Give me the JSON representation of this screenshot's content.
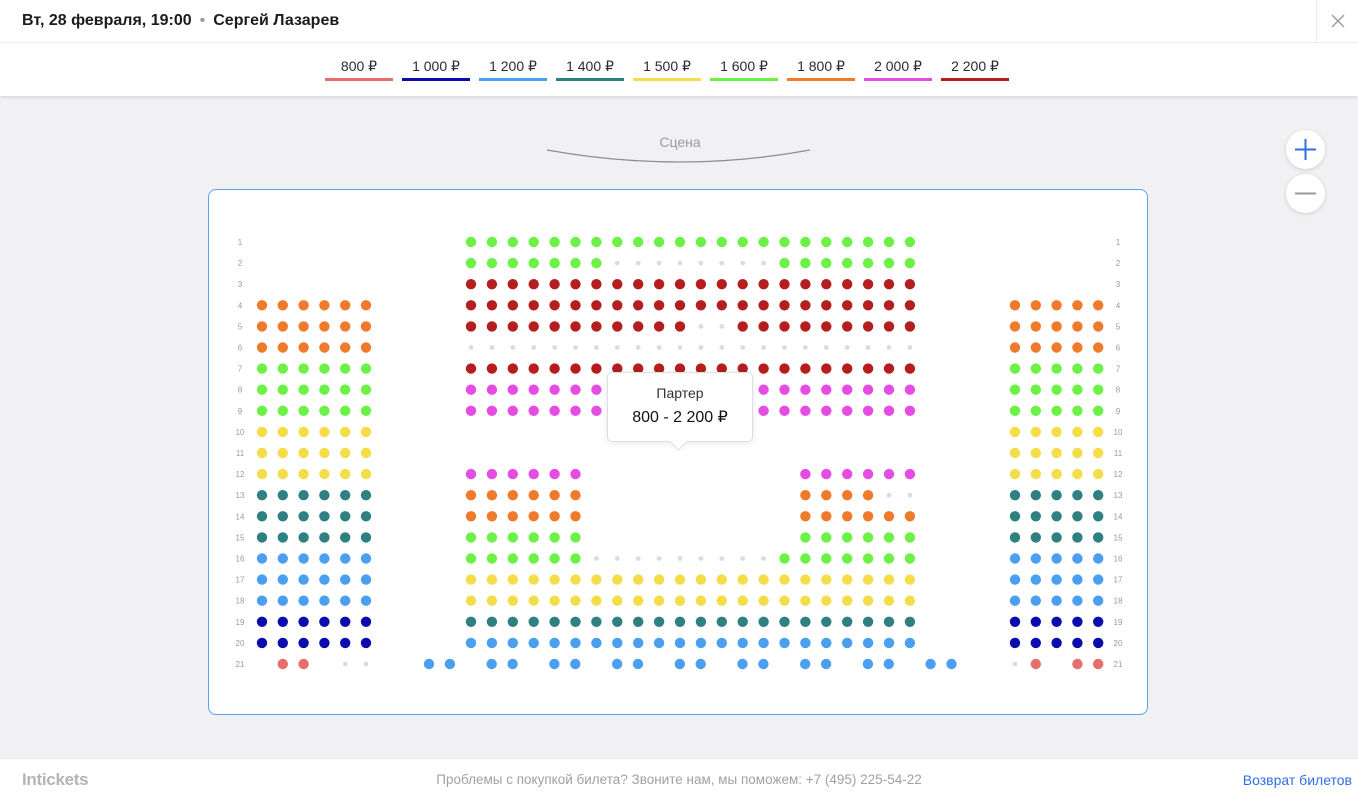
{
  "header": {
    "date": "Вт, 28 февраля, 19:00",
    "separator": "•",
    "artist": "Сергей Лазарев"
  },
  "icons": {
    "close": "close-icon",
    "zoom_in": "plus-icon",
    "zoom_out": "minus-icon"
  },
  "legend": [
    {
      "label": "800 ₽",
      "color": "#e76f6b"
    },
    {
      "label": "1 000 ₽",
      "color": "#0c0cae"
    },
    {
      "label": "1 200 ₽",
      "color": "#4a9ff0"
    },
    {
      "label": "1 400 ₽",
      "color": "#2f8080"
    },
    {
      "label": "1 500 ₽",
      "color": "#f5dd4a"
    },
    {
      "label": "1 600 ₽",
      "color": "#6cf247"
    },
    {
      "label": "1 800 ₽",
      "color": "#f07a2c"
    },
    {
      "label": "2 000 ₽",
      "color": "#e54de2"
    },
    {
      "label": "2 200 ₽",
      "color": "#b41e1e"
    }
  ],
  "colors": {
    "unavailable": "#dcdcdc",
    "accent": "#2f6fe0",
    "hall_border": "#5e9ef5"
  },
  "stage": {
    "label": "Сцена"
  },
  "tooltip": {
    "title": "Партер",
    "range": "800 - 2 200 ₽"
  },
  "rows": [
    "1",
    "2",
    "3",
    "4",
    "5",
    "6",
    "7",
    "8",
    "9",
    "10",
    "11",
    "12",
    "13",
    "14",
    "15",
    "16",
    "17",
    "18",
    "19",
    "20",
    "21"
  ],
  "seatmap": {
    "legend_key": "-=1000 A=800 B=1000 C=1200 D=1400 E=1500 F=1600 G=1800 H=2000 I=2200 .=unavailable _=no seat",
    "left": [
      "______",
      "______",
      "______",
      "GGGGGG",
      "GGGGGG",
      "GGGGGG",
      "FFFFFF",
      "FFFFFF",
      "FFFFFF",
      "EEEEEE",
      "EEEEEE",
      "EEEEEE",
      "DDDDDD",
      "DDDDDD",
      "DDDDDD",
      "CCCCCC",
      "CCCCCC",
      "CCCCCC",
      "BBBBBB",
      "BBBBBB",
      "_AA_.."
    ],
    "center": [
      "FFFFFFFFFFFFFFFFFFFFFF",
      "FFFFFFF........FFFFFFF",
      "IIIIIIIIIIIIIIIIIIIIII",
      "IIIIIIIIIIIIIIIIIIIIII",
      "IIIIIIIIIII..IIIIIIIII",
      "......................",
      "IIIIIIIIIIIIIIIIIIIIII",
      "HHHHHHHHHHHHHHHHHHHHHH",
      "HHHHHHHHHHHHHHHHHHHHHH",
      "______________________",
      "______________________",
      "HHHHHH__________HHHHHH",
      "GGGGGG__________GGGG..",
      "GGGGGG__________GGGGGG",
      "FFFFFF__________FFFFFF",
      "FFFFFF.........FFFFFFF",
      "EEEEEEEEEEEEEEEEEEEEEE",
      "EEEEEEEEEEEEEEEEEEEEEE",
      "DDDDDDDDDDDDDDDDDDDDDD",
      "CCCCCCCCCCCCCCCCCCCCCC"
    ],
    "row21_center": [
      "C",
      "C",
      "_",
      "C",
      "C",
      "_",
      "C",
      "C",
      "_",
      "C",
      "C",
      "_",
      "C",
      "C",
      "_",
      "C",
      "C",
      "_",
      "C",
      "C",
      "_",
      "C",
      "C",
      "_",
      "C",
      "C"
    ],
    "right": [
      "_____",
      "_____",
      "_____",
      "GGGGG",
      "GGGGG",
      "GGGGG",
      "FFFFF",
      "FFFFF",
      "FFFFF",
      "EEEEE",
      "EEEEE",
      "EEEEE",
      "DDDDD",
      "DDDDD",
      "DDDDD",
      "CCCCC",
      "CCCCC",
      "CCCCC",
      "BBBBB",
      "BBBBB",
      ".A_AA"
    ]
  },
  "footer": {
    "logo": "Intickets",
    "help": "Проблемы с покупкой билета? Звоните нам, мы поможем: +7 (495) 225-54-22",
    "refund": "Возврат билетов"
  }
}
